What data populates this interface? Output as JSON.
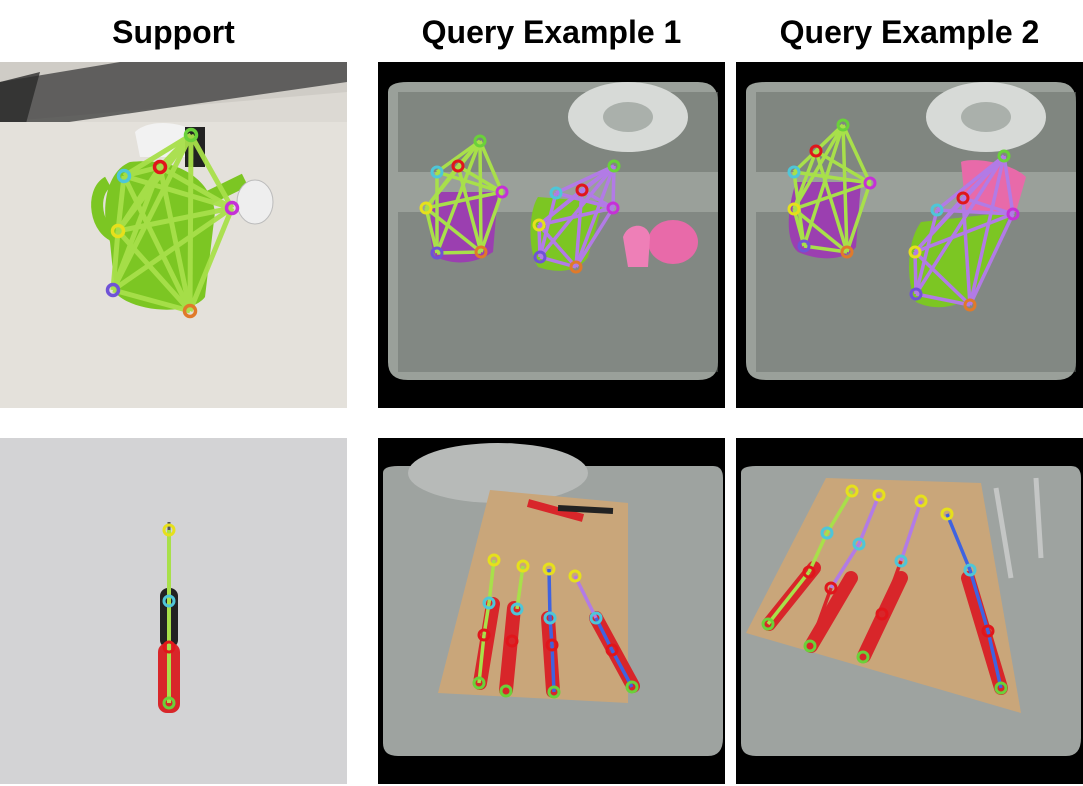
{
  "figure": {
    "columns": [
      {
        "title": "Support"
      },
      {
        "title": "Query Example 1"
      },
      {
        "title": "Query Example 2"
      }
    ]
  },
  "colors": {
    "edge_green": "#a8e04a",
    "edge_purple": "#b27be6",
    "edge_blue": "#3f63e0",
    "kp_green": "#6ad13a",
    "kp_red": "#e0161b",
    "kp_cyan": "#4ec6d8",
    "kp_magenta": "#c531d6",
    "kp_yellow": "#e6e01c",
    "kp_violet": "#6f52d6",
    "kp_orange": "#e07a2a"
  }
}
